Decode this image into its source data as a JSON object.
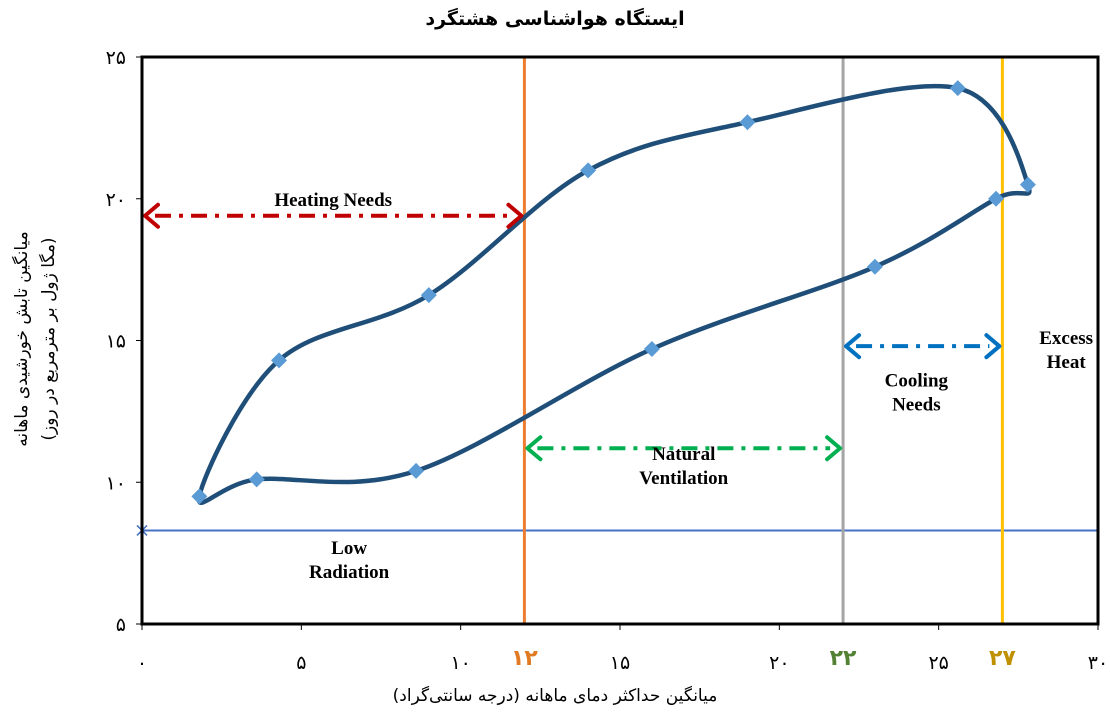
{
  "chart_data": {
    "type": "line",
    "title": "ایستگاه هواشناسی هشتگرد",
    "xlabel": "میانگین حداکثر دمای ماهانه (درجه سانتی‌گراد)",
    "ylabel_line1": "میانگین تابش خورشیدی ماهانه",
    "ylabel_line2": "(مگا ژول بر مترمربع در روز)",
    "xlim": [
      0,
      30
    ],
    "ylim": [
      5,
      25
    ],
    "x_ticks": [
      {
        "value": 0,
        "label": "۰"
      },
      {
        "value": 5,
        "label": "۵"
      },
      {
        "value": 10,
        "label": "۱۰"
      },
      {
        "value": 15,
        "label": "۱۵"
      },
      {
        "value": 20,
        "label": "۲۰"
      },
      {
        "value": 25,
        "label": "۲۵"
      },
      {
        "value": 30,
        "label": "۳۰"
      }
    ],
    "y_ticks": [
      {
        "value": 5,
        "label": "۵"
      },
      {
        "value": 10,
        "label": "۱۰"
      },
      {
        "value": 15,
        "label": "۱۵"
      },
      {
        "value": 20,
        "label": "۲۰"
      },
      {
        "value": 25,
        "label": "۲۵"
      }
    ],
    "threshold_ticks": [
      {
        "value": 12,
        "label": "۱۲",
        "color": "#E07B24"
      },
      {
        "value": 22,
        "label": "۲۲",
        "color": "#548235"
      },
      {
        "value": 27,
        "label": "۲۷",
        "color": "#BF9000"
      }
    ],
    "series_color": "#1F4E79",
    "marker_color": "#5B9BD5",
    "points": [
      {
        "x": 1.8,
        "y": 9.5
      },
      {
        "x": 3.6,
        "y": 10.1
      },
      {
        "x": 8.6,
        "y": 10.4
      },
      {
        "x": 16.0,
        "y": 14.7
      },
      {
        "x": 23.0,
        "y": 17.6
      },
      {
        "x": 26.8,
        "y": 20.0
      },
      {
        "x": 27.8,
        "y": 20.5
      },
      {
        "x": 25.6,
        "y": 23.9
      },
      {
        "x": 19.0,
        "y": 22.7
      },
      {
        "x": 14.0,
        "y": 21.0
      },
      {
        "x": 9.0,
        "y": 16.6
      },
      {
        "x": 4.3,
        "y": 14.3
      }
    ],
    "vertical_lines": [
      {
        "x": 12,
        "color": "#ED7D31"
      },
      {
        "x": 22,
        "color": "#A5A5A5"
      },
      {
        "x": 27,
        "color": "#FFC000"
      }
    ],
    "horizontal_line": {
      "y": 8.3,
      "color": "#4472C4"
    },
    "arrows": [
      {
        "x1": 0,
        "x2": 12,
        "y": 19.4,
        "color": "#C00000"
      },
      {
        "x1": 12,
        "x2": 22,
        "y": 11.2,
        "color": "#00B050"
      },
      {
        "x1": 22,
        "x2": 27,
        "y": 14.8,
        "color": "#0070C0"
      }
    ],
    "annotations": [
      {
        "lines": [
          "Heating Needs"
        ],
        "x": 6.0,
        "y": 20.0
      },
      {
        "lines": [
          "Natural",
          "Ventilation"
        ],
        "x": 17.0,
        "y": 10.6
      },
      {
        "lines": [
          "Cooling",
          "Needs"
        ],
        "x": 24.3,
        "y": 13.2
      },
      {
        "lines": [
          "Excess",
          "Heat"
        ],
        "x": 29.0,
        "y": 14.7
      },
      {
        "lines": [
          "Low",
          "Radiation"
        ],
        "x": 6.5,
        "y": 7.3
      }
    ]
  }
}
